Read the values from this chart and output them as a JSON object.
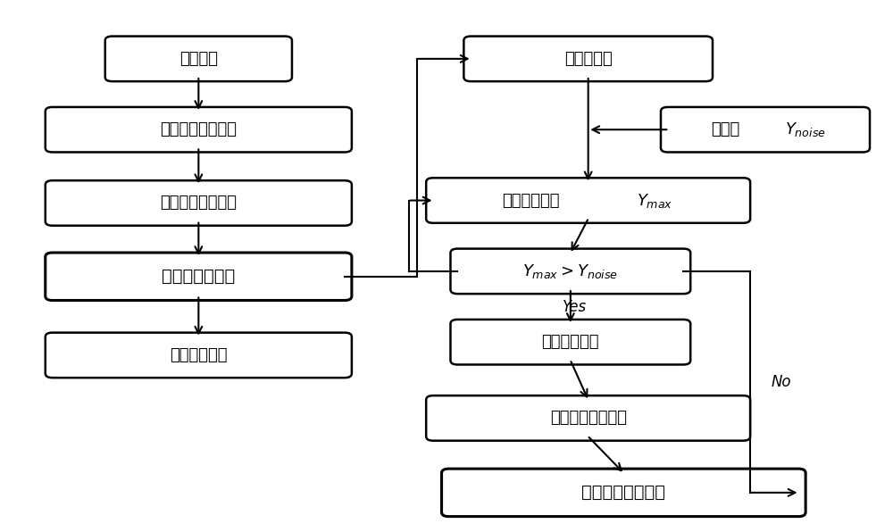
{
  "bg_color": "#ffffff",
  "box_color": "#ffffff",
  "box_edge_color": "#000000",
  "arrow_color": "#000000",
  "labels": {
    "0": "谱峰读取",
    "1": "谱峰初次位移校准",
    "2": "固定区间谱峰校准",
    "3": "全谱峰校准完成",
    "4": "计算相关系数",
    "5": "全谱峰校准",
    "6": "噪音值",
    "7": "确定最大谱峰",
    "8": "",
    "9": "确定校准区间",
    "10": "去除谱峰后的差谱",
    "11": "谱峰变量提取完成"
  },
  "yes_label": "Yes",
  "no_label": "No"
}
